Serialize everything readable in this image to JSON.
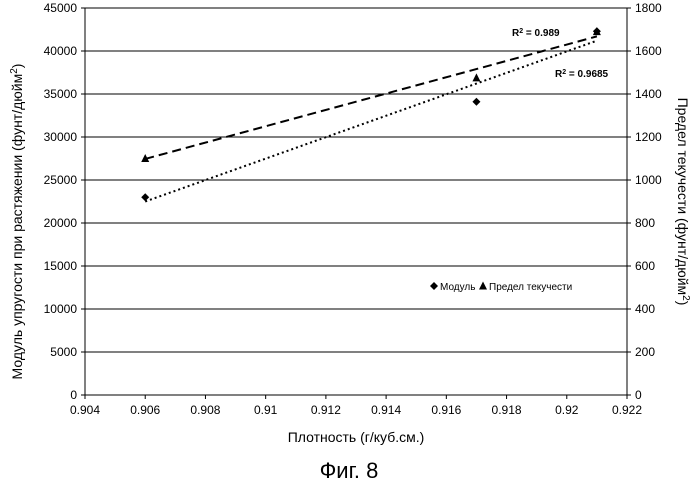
{
  "chart_data": {
    "type": "scatter",
    "caption": "Фиг. 8",
    "xlabel": "Плотность (г/куб.см.)",
    "ylabel_left": "Модуль упругости при растяжении  (фунт/дюйм",
    "ylabel_left_sup": "2",
    "ylabel_left_close": ")",
    "ylabel_right": "Предел текучести (фунт/дюйм",
    "ylabel_right_sup": "2",
    "ylabel_right_close": ")",
    "xlim": [
      0.904,
      0.922
    ],
    "ylim_left": [
      0,
      45000
    ],
    "ylim_right": [
      0,
      1800
    ],
    "x_ticks": [
      "0.904",
      "0.906",
      "0.908",
      "0.91",
      "0.912",
      "0.914",
      "0.916",
      "0.918",
      "0.92",
      "0.922"
    ],
    "y_left_ticks": [
      "0",
      "5000",
      "10000",
      "15000",
      "20000",
      "25000",
      "30000",
      "35000",
      "40000",
      "45000"
    ],
    "y_right_ticks": [
      "0",
      "200",
      "400",
      "600",
      "800",
      "1000",
      "1200",
      "1400",
      "1600",
      "1800"
    ],
    "grid": "horizontal",
    "legend_position": "lower-right",
    "series": [
      {
        "name": "Модуль",
        "axis": "left",
        "marker": "diamond",
        "x": [
          0.906,
          0.917,
          0.921
        ],
        "y": [
          23000,
          34100,
          42300
        ],
        "trendline": {
          "style": "dotted",
          "x": [
            0.906,
            0.921
          ],
          "y": [
            22500,
            41200
          ],
          "r2_label": "R",
          "r2_sup": "2",
          "r2_value": " = 0.9685"
        }
      },
      {
        "name": "Предел текучести",
        "axis": "right",
        "marker": "triangle",
        "x": [
          0.906,
          0.917,
          0.921
        ],
        "y": [
          1100,
          1475,
          1690
        ],
        "trendline": {
          "style": "dashed",
          "x": [
            0.906,
            0.921
          ],
          "y": [
            1098,
            1668
          ],
          "r2_label": "R",
          "r2_sup": "2",
          "r2_value": " = 0.989"
        }
      }
    ]
  }
}
